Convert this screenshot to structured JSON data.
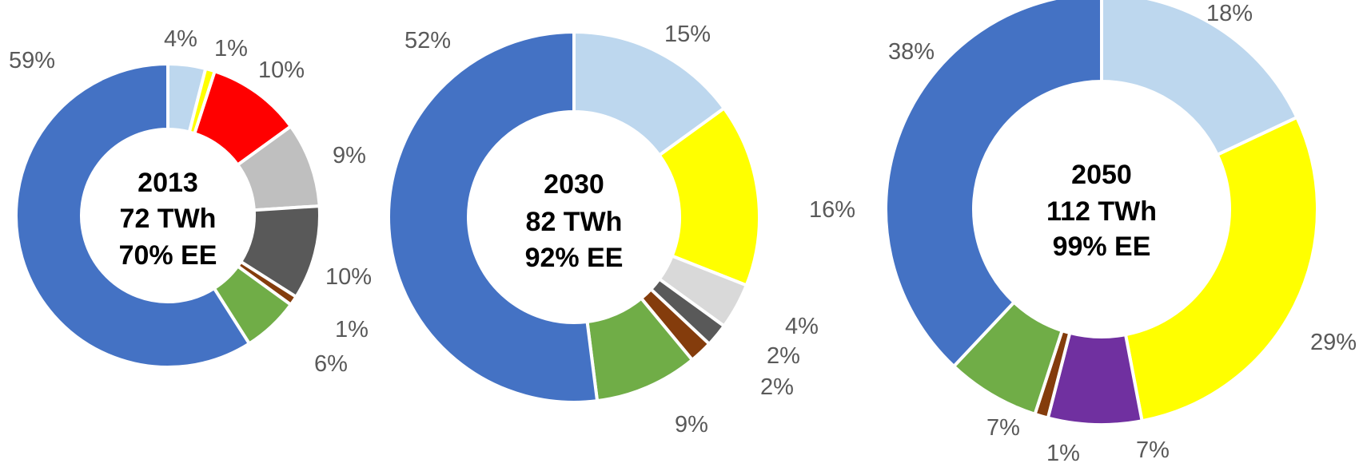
{
  "chart_data": [
    {
      "type": "donut",
      "center_label": [
        "2013",
        "72 TWh",
        "70% EE"
      ],
      "slices": [
        {
          "value": 4,
          "label": "4%",
          "color": "#BDD7EE"
        },
        {
          "value": 1,
          "label": "1%",
          "color": "#FFFF00"
        },
        {
          "value": 10,
          "label": "10%",
          "color": "#FF0000"
        },
        {
          "value": 9,
          "label": "9%",
          "color": "#BFBFBF"
        },
        {
          "value": 10,
          "label": "10%",
          "color": "#595959"
        },
        {
          "value": 1,
          "label": "1%",
          "color": "#843C0C"
        },
        {
          "value": 6,
          "label": "6%",
          "color": "#70AD47"
        },
        {
          "value": 59,
          "label": "59%",
          "color": "#4472C4"
        }
      ]
    },
    {
      "type": "donut",
      "center_label": [
        "2030",
        "82 TWh",
        "92% EE"
      ],
      "slices": [
        {
          "value": 15,
          "label": "15%",
          "color": "#BDD7EE"
        },
        {
          "value": 16,
          "label": "16%",
          "color": "#FFFF00"
        },
        {
          "value": 4,
          "label": "4%",
          "color": "#D9D9D9"
        },
        {
          "value": 2,
          "label": "2%",
          "color": "#595959"
        },
        {
          "value": 2,
          "label": "2%",
          "color": "#843C0C"
        },
        {
          "value": 9,
          "label": "9%",
          "color": "#70AD47"
        },
        {
          "value": 52,
          "label": "52%",
          "color": "#4472C4"
        }
      ]
    },
    {
      "type": "donut",
      "center_label": [
        "2050",
        "112 TWh",
        "99% EE"
      ],
      "slices": [
        {
          "value": 18,
          "label": "18%",
          "color": "#BDD7EE"
        },
        {
          "value": 29,
          "label": "29%",
          "color": "#FFFF00"
        },
        {
          "value": 7,
          "label": "7%",
          "color": "#7030A0"
        },
        {
          "value": 1,
          "label": "1%",
          "color": "#843C0C"
        },
        {
          "value": 7,
          "label": "7%",
          "color": "#70AD47"
        },
        {
          "value": 38,
          "label": "38%",
          "color": "#4472C4"
        }
      ]
    }
  ]
}
